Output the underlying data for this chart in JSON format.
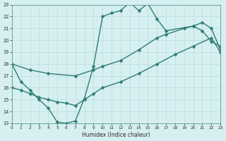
{
  "xlabel": "Humidex (Indice chaleur)",
  "bg_color": "#d6eff0",
  "grid_color": "#b8dde0",
  "line_color": "#2e7d72",
  "xlim": [
    0,
    23
  ],
  "ylim": [
    13,
    23
  ],
  "xticks": [
    0,
    1,
    2,
    3,
    4,
    5,
    6,
    7,
    8,
    9,
    10,
    11,
    12,
    13,
    14,
    15,
    16,
    17,
    18,
    19,
    20,
    21,
    22,
    23
  ],
  "yticks": [
    13,
    14,
    15,
    16,
    17,
    18,
    19,
    20,
    21,
    22,
    23
  ],
  "series": [
    {
      "x": [
        0,
        1,
        2,
        3,
        4,
        5,
        6,
        7,
        8,
        9,
        10,
        11,
        12,
        13,
        14,
        15,
        16,
        17,
        20,
        21,
        22,
        23
      ],
      "y": [
        18,
        16.5,
        15.8,
        15.0,
        14.3,
        13.1,
        13.0,
        13.2,
        15.1,
        17.8,
        22.0,
        22.3,
        22.5,
        23.2,
        22.5,
        23.1,
        21.8,
        20.8,
        21.2,
        20.8,
        19.9,
        19.5
      ],
      "marker": "D",
      "markersize": 2.5,
      "linewidth": 1.0
    },
    {
      "x": [
        0,
        2,
        4,
        7,
        9,
        10,
        12,
        14,
        16,
        17,
        19,
        20,
        21,
        22,
        23
      ],
      "y": [
        18.0,
        17.5,
        17.2,
        17.0,
        17.5,
        17.8,
        18.3,
        19.2,
        20.2,
        20.5,
        21.0,
        21.2,
        21.5,
        21.0,
        19.2
      ],
      "marker": "D",
      "markersize": 2.5,
      "linewidth": 1.0
    },
    {
      "x": [
        0,
        1,
        2,
        3,
        4,
        5,
        6,
        7,
        8,
        9,
        10,
        12,
        14,
        16,
        18,
        20,
        22,
        23
      ],
      "y": [
        16.0,
        15.8,
        15.5,
        15.2,
        15.0,
        14.8,
        14.7,
        14.5,
        15.0,
        15.5,
        16.0,
        16.5,
        17.2,
        18.0,
        18.8,
        19.5,
        20.2,
        19.0
      ],
      "marker": "D",
      "markersize": 2.5,
      "linewidth": 1.0
    }
  ]
}
